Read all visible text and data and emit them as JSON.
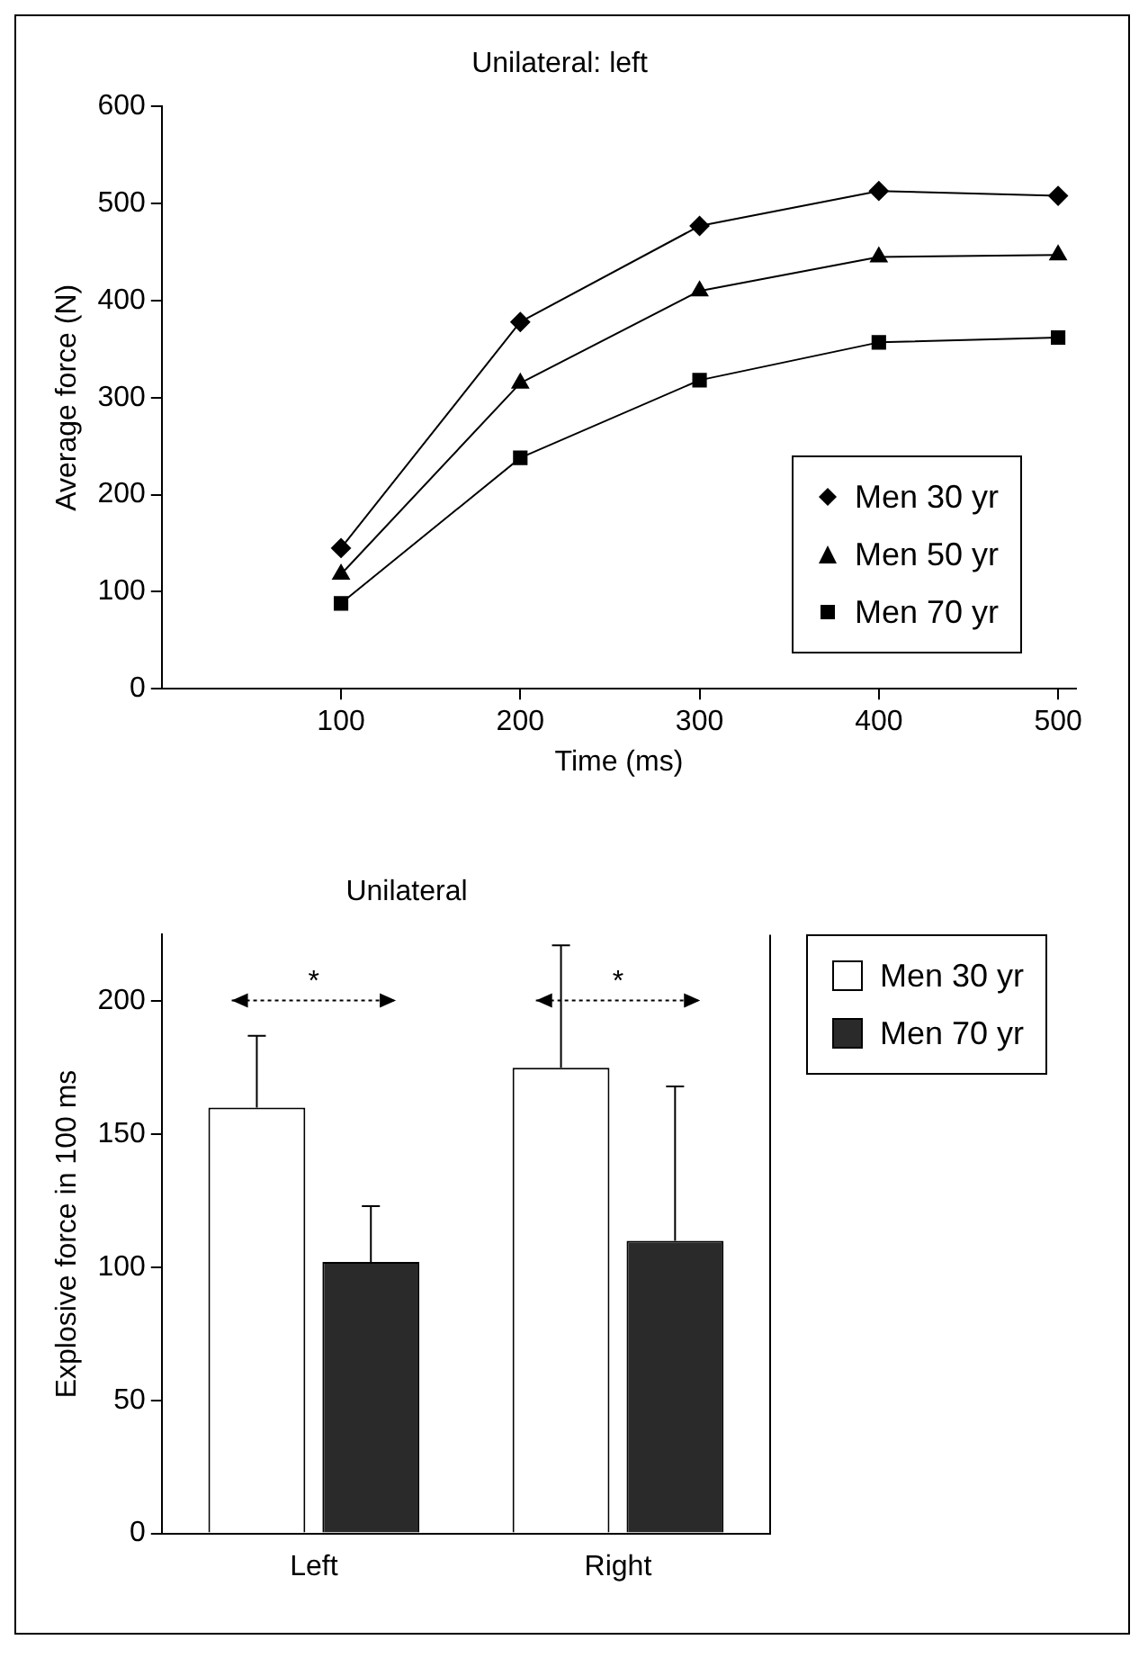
{
  "chart_data": [
    {
      "type": "line",
      "title": "Unilateral: left",
      "xlabel": "Time (ms)",
      "ylabel": "Average force (N)",
      "x": [
        100,
        200,
        300,
        400,
        500
      ],
      "xlim": [
        0,
        510
      ],
      "xticks": [
        100,
        200,
        300,
        400,
        500
      ],
      "ylim": [
        0,
        600
      ],
      "yticks": [
        0,
        100,
        200,
        300,
        400,
        500,
        600
      ],
      "grid": false,
      "legend": "bottom right",
      "series": [
        {
          "name": "Men 30 yr",
          "color": "#000000",
          "marker": "diamond",
          "values": [
            145,
            378,
            477,
            513,
            508
          ]
        },
        {
          "name": "Men 50 yr",
          "color": "#000000",
          "marker": "triangle",
          "values": [
            118,
            315,
            410,
            445,
            447
          ]
        },
        {
          "name": "Men 70 yr",
          "color": "#000000",
          "marker": "square",
          "values": [
            88,
            238,
            318,
            357,
            362
          ]
        }
      ]
    },
    {
      "type": "bar",
      "title": "Unilateral",
      "ylabel": "Explosive force in 100 ms",
      "categories": [
        "Left",
        "Right"
      ],
      "ylim": [
        0,
        225
      ],
      "yticks": [
        0,
        50,
        100,
        150,
        200
      ],
      "grid": false,
      "legend": "right",
      "annotations": [
        "*",
        "*"
      ],
      "series": [
        {
          "name": "Men 30 yr",
          "color": "#ffffff",
          "values": [
            160,
            175
          ],
          "errors": [
            [
              160,
              187
            ],
            [
              175,
              221
            ]
          ]
        },
        {
          "name": "Men 70 yr",
          "color": "#2a2a2a",
          "values": [
            102,
            110
          ],
          "errors": [
            [
              102,
              123
            ],
            [
              110,
              168
            ]
          ]
        }
      ]
    }
  ]
}
